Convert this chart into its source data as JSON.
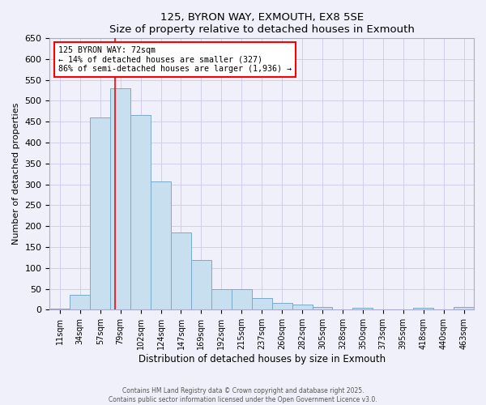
{
  "title": "125, BYRON WAY, EXMOUTH, EX8 5SE",
  "subtitle": "Size of property relative to detached houses in Exmouth",
  "xlabel": "Distribution of detached houses by size in Exmouth",
  "ylabel": "Number of detached properties",
  "bar_labels": [
    "11sqm",
    "34sqm",
    "57sqm",
    "79sqm",
    "102sqm",
    "124sqm",
    "147sqm",
    "169sqm",
    "192sqm",
    "215sqm",
    "237sqm",
    "260sqm",
    "282sqm",
    "305sqm",
    "328sqm",
    "350sqm",
    "373sqm",
    "395sqm",
    "418sqm",
    "440sqm",
    "463sqm"
  ],
  "bar_values": [
    3,
    35,
    460,
    530,
    465,
    307,
    184,
    119,
    50,
    50,
    28,
    17,
    12,
    6,
    0,
    4,
    0,
    0,
    4,
    0,
    6
  ],
  "bar_color": "#c8dff0",
  "bar_edge_color": "#7aaaca",
  "ylim": [
    0,
    650
  ],
  "yticks": [
    0,
    50,
    100,
    150,
    200,
    250,
    300,
    350,
    400,
    450,
    500,
    550,
    600,
    650
  ],
  "annotation_title": "125 BYRON WAY: 72sqm",
  "annotation_line1": "← 14% of detached houses are smaller (327)",
  "annotation_line2": "86% of semi-detached houses are larger (1,936) →",
  "footer1": "Contains HM Land Registry data © Crown copyright and database right 2025.",
  "footer2": "Contains public sector information licensed under the Open Government Licence v3.0.",
  "bg_color": "#f0f0fa",
  "grid_color": "#d0d0e8",
  "red_line_x": 2.72
}
